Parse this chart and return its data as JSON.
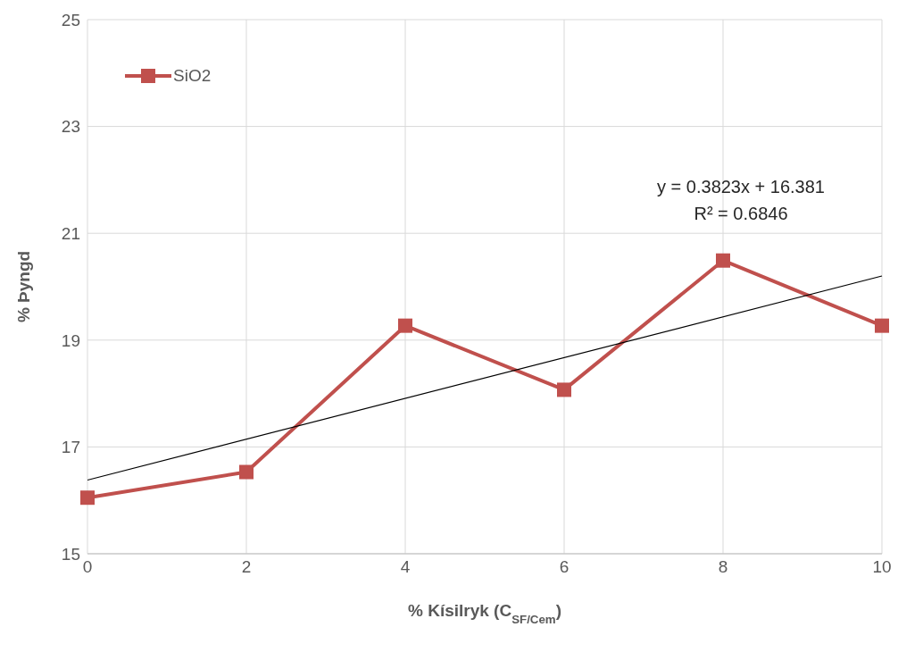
{
  "chart_data": {
    "type": "line",
    "xlabel": "% Kísilryk (C$_{SF/Cem}$)",
    "ylabel": "% Þyngd",
    "x": [
      0,
      2,
      4,
      6,
      8,
      10
    ],
    "series": [
      {
        "name": "SiO2",
        "color": "#c0504d",
        "values": [
          16.05,
          16.53,
          19.27,
          18.07,
          20.49,
          19.27
        ],
        "marker": "square"
      },
      {
        "color": "#000000",
        "x": [
          0,
          10
        ],
        "values": [
          16.38,
          20.2
        ],
        "marker": "none"
      }
    ],
    "annotations": [
      "y = 0.3823x + 16.381",
      "R² = 0.6846"
    ],
    "xlim": [
      0,
      10
    ],
    "xticks": [
      0,
      2,
      4,
      6,
      8,
      10
    ],
    "ylim": [
      15,
      25
    ],
    "yticks": [
      15,
      17,
      19,
      21,
      23,
      25
    ],
    "grid": true,
    "legend": "top left",
    "line_style": "solid"
  }
}
